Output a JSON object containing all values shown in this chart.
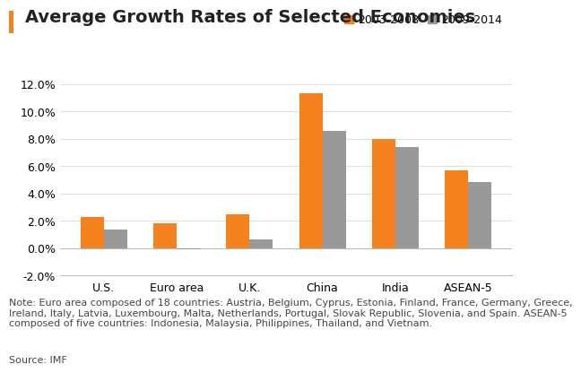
{
  "title": "Average Growth Rates of Selected Economies",
  "categories": [
    "U.S.",
    "Euro area",
    "U.K.",
    "China",
    "India",
    "ASEAN-5"
  ],
  "series": [
    {
      "label": "2003-2008",
      "color": "#F5821E",
      "values": [
        2.25,
        1.85,
        2.45,
        11.3,
        8.0,
        5.7
      ]
    },
    {
      "label": "2009-2014",
      "color": "#999999",
      "values": [
        1.35,
        -0.1,
        0.65,
        8.55,
        7.4,
        4.85
      ]
    }
  ],
  "ylim": [
    -2.0,
    13.5
  ],
  "yticks": [
    -2.0,
    0.0,
    2.0,
    4.0,
    6.0,
    8.0,
    10.0,
    12.0
  ],
  "note_text": "Note: Euro area composed of 18 countries: Austria, Belgium, Cyprus, Estonia, Finland, France, Germany, Greece,\nIreland, Italy, Latvia, Luxembourg, Malta, Netherlands, Portugal, Slovak Republic, Slovenia, and Spain. ASEAN-5\ncomposed of five countries: Indonesia, Malaysia, Philippines, Thailand, and Vietnam.",
  "source_text": "Source: IMF",
  "title_accent_color": "#F5821E",
  "background_color": "#FFFFFF",
  "bar_width": 0.32,
  "title_fontsize": 14,
  "axis_fontsize": 9,
  "note_fontsize": 8,
  "legend_fontsize": 9
}
